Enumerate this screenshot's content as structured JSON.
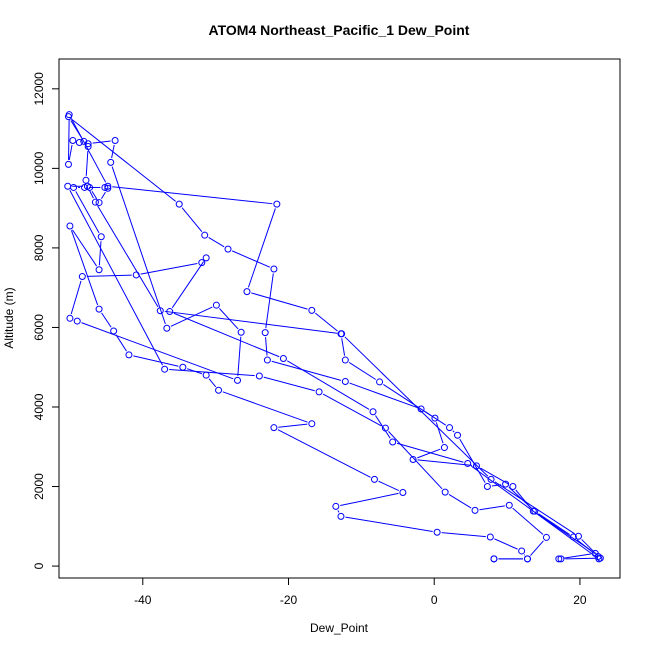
{
  "chart_data": {
    "type": "line",
    "title": "ATOM4 Northeast_Pacific_1 Dew_Point",
    "xlabel": "Dew_Point",
    "ylabel": "Altitude (m)",
    "xlim": [
      -51.5,
      25.5
    ],
    "ylim": [
      -300,
      12750
    ],
    "x_ticks": [
      -40,
      -20,
      0,
      20
    ],
    "y_ticks": [
      0,
      2000,
      4000,
      6000,
      8000,
      10000,
      12000
    ],
    "grid": false,
    "series_color": "#0000ff",
    "marker": "open-circle",
    "series": [
      {
        "points": [
          [
            8.2,
            180
          ],
          [
            12.8,
            180
          ],
          [
            12.0,
            380
          ],
          [
            7.7,
            730
          ],
          [
            0.4,
            850
          ],
          [
            -12.8,
            1250
          ],
          [
            -13.5,
            1500
          ],
          [
            -4.3,
            1850
          ],
          [
            -8.2,
            2180
          ],
          [
            -22.0,
            3480
          ],
          [
            -16.8,
            3580
          ],
          [
            -29.6,
            4420
          ],
          [
            -31.3,
            4800
          ],
          [
            -34.5,
            5000
          ],
          [
            -41.9,
            5310
          ],
          [
            -44.0,
            5910
          ],
          [
            -46.0,
            6460
          ],
          [
            -50.0,
            8550
          ],
          [
            -46.0,
            7450
          ],
          [
            -45.7,
            8280
          ],
          [
            -49.5,
            9520
          ],
          [
            -48.0,
            9520
          ],
          [
            -45.2,
            9520
          ],
          [
            -44.8,
            9500
          ],
          [
            -46.0,
            9140
          ],
          [
            -47.3,
            9520
          ],
          [
            -47.8,
            9700
          ],
          [
            -47.5,
            10550
          ],
          [
            -48.1,
            10680
          ],
          [
            -50.2,
            11300
          ],
          [
            -35.0,
            9100
          ],
          [
            -31.5,
            8320
          ],
          [
            -28.3,
            7970
          ],
          [
            -22.0,
            7470
          ],
          [
            -23.2,
            5870
          ],
          [
            -22.9,
            5180
          ],
          [
            -12.2,
            4640
          ],
          [
            -1.8,
            3950
          ],
          [
            2.1,
            3480
          ],
          [
            3.2,
            3290
          ],
          [
            7.3,
            2000
          ],
          [
            9.8,
            2060
          ],
          [
            13.8,
            1380
          ],
          [
            19.1,
            730
          ],
          [
            22.5,
            240
          ],
          [
            22.6,
            180
          ],
          [
            4.6,
            2580
          ],
          [
            -5.7,
            3120
          ],
          [
            -8.4,
            3880
          ],
          [
            -20.7,
            5220
          ],
          [
            -36.3,
            6400
          ],
          [
            -31.3,
            7750
          ],
          [
            -31.9,
            7630
          ],
          [
            -40.9,
            7320
          ],
          [
            -48.3,
            7280
          ],
          [
            -50.0,
            6230
          ],
          [
            -49.0,
            6160
          ],
          [
            -27.0,
            4670
          ],
          [
            -26.5,
            5880
          ],
          [
            -29.9,
            6560
          ],
          [
            -36.7,
            5980
          ],
          [
            -44.4,
            10150
          ],
          [
            -43.8,
            10700
          ],
          [
            -47.5,
            10620
          ],
          [
            -48.7,
            10650
          ],
          [
            -49.6,
            10700
          ],
          [
            -50.2,
            10100
          ],
          [
            -50.1,
            11350
          ],
          [
            -44.8,
            9550
          ],
          [
            -21.6,
            9100
          ],
          [
            -25.7,
            6900
          ],
          [
            -16.8,
            6430
          ],
          [
            -12.8,
            5840
          ],
          [
            -12.2,
            5180
          ],
          [
            -7.5,
            4630
          ],
          [
            0.1,
            3720
          ],
          [
            1.4,
            2980
          ],
          [
            -2.9,
            2680
          ],
          [
            5.8,
            2520
          ],
          [
            10.8,
            2000
          ],
          [
            13.6,
            1380
          ],
          [
            22.1,
            320
          ],
          [
            17.1,
            180
          ],
          [
            17.4,
            180
          ],
          [
            22.8,
            200
          ],
          [
            19.8,
            750
          ],
          [
            7.8,
            2180
          ],
          [
            -12.7,
            5840
          ],
          [
            -37.6,
            6420
          ],
          [
            -46.5,
            9150
          ],
          [
            -47.6,
            9550
          ],
          [
            -50.3,
            9550
          ],
          [
            -37.0,
            4950
          ],
          [
            -24.0,
            4780
          ],
          [
            -15.8,
            4380
          ],
          [
            -6.7,
            3470
          ],
          [
            1.5,
            1860
          ],
          [
            5.6,
            1400
          ],
          [
            10.3,
            1530
          ],
          [
            15.4,
            720
          ],
          [
            12.8,
            180
          ],
          [
            8.2,
            180
          ]
        ]
      }
    ]
  }
}
